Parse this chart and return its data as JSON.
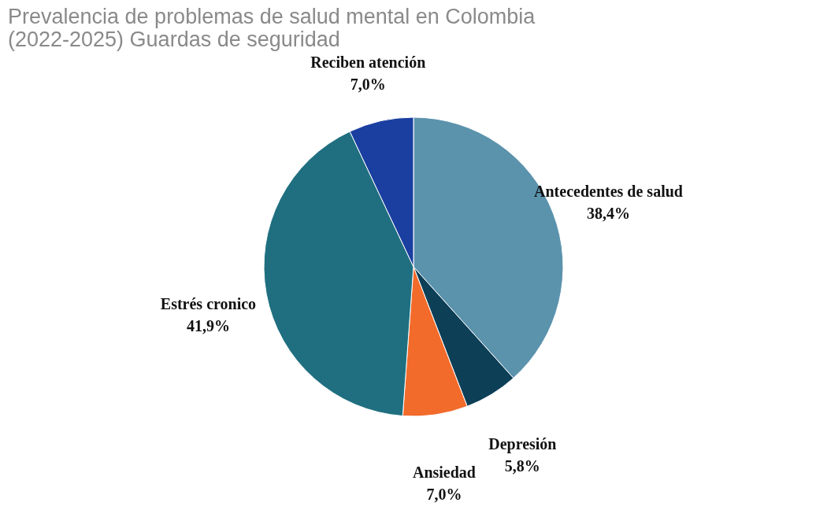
{
  "chart_data": {
    "type": "pie",
    "title": "Prevalencia de problemas de salud mental en Colombia (2022-2025) Guardas de seguridad",
    "categories": [
      "Antecedentes de salud",
      "Depresión",
      "Ansiedad",
      "Estrés cronico",
      "Reciben atención"
    ],
    "values": [
      38.4,
      5.8,
      7.0,
      41.9,
      7.0
    ],
    "colors": [
      "#5b93ad",
      "#0d3f57",
      "#f26b2b",
      "#1f6f80",
      "#1a3fa0"
    ],
    "value_labels": [
      "38,4%",
      "5,8%",
      "7,0%",
      "41,9%",
      "7,0%"
    ],
    "legend": false
  }
}
